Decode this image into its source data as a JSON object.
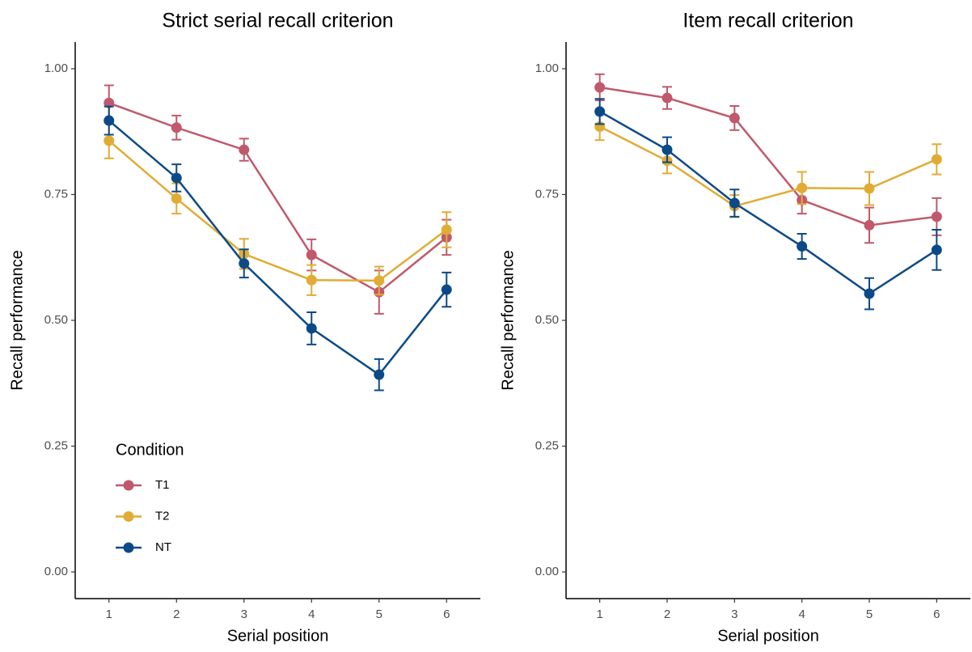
{
  "chart_data": [
    {
      "type": "line",
      "title": "Strict serial recall criterion",
      "x_label": "Serial position",
      "y_label": "Recall performance",
      "x": [
        1,
        2,
        3,
        4,
        5,
        6
      ],
      "xlim": [
        0.5,
        6.5
      ],
      "xticks": [
        1,
        2,
        3,
        4,
        5,
        6
      ],
      "ylim": [
        -0.053,
        1.053
      ],
      "yticks": [
        {
          "value": 0,
          "label": "0.00"
        },
        {
          "value": 0.25,
          "label": "0.25"
        },
        {
          "value": 0.5,
          "label": "0.50"
        },
        {
          "value": 0.75,
          "label": "0.75"
        },
        {
          "value": 1,
          "label": "1.00"
        }
      ],
      "legend": "bottom-left",
      "legend_title": "Condition",
      "series": [
        {
          "name": "T1",
          "color": "#c0596b",
          "values": [
            0.932,
            0.883,
            0.839,
            0.63,
            0.556,
            0.665
          ],
          "errors": [
            0.035,
            0.024,
            0.022,
            0.031,
            0.043,
            0.035
          ]
        },
        {
          "name": "T2",
          "color": "#e0ac35",
          "values": [
            0.857,
            0.742,
            0.632,
            0.58,
            0.579,
            0.68
          ],
          "errors": [
            0.035,
            0.03,
            0.03,
            0.03,
            0.028,
            0.035
          ]
        },
        {
          "name": "NT",
          "color": "#0c4a87",
          "values": [
            0.897,
            0.783,
            0.613,
            0.484,
            0.392,
            0.561
          ],
          "errors": [
            0.028,
            0.027,
            0.028,
            0.032,
            0.031,
            0.034
          ]
        }
      ]
    },
    {
      "type": "line",
      "title": "Item recall criterion",
      "x_label": "Serial position",
      "y_label": "Recall performance",
      "x": [
        1,
        2,
        3,
        4,
        5,
        6
      ],
      "xlim": [
        0.5,
        6.5
      ],
      "xticks": [
        1,
        2,
        3,
        4,
        5,
        6
      ],
      "ylim": [
        -0.053,
        1.053
      ],
      "yticks": [
        {
          "value": 0,
          "label": "0.00"
        },
        {
          "value": 0.25,
          "label": "0.25"
        },
        {
          "value": 0.5,
          "label": "0.50"
        },
        {
          "value": 0.75,
          "label": "0.75"
        },
        {
          "value": 1,
          "label": "1.00"
        }
      ],
      "legend": "none",
      "series": [
        {
          "name": "T1",
          "color": "#c0596b",
          "values": [
            0.963,
            0.942,
            0.902,
            0.739,
            0.689,
            0.706
          ],
          "errors": [
            0.026,
            0.022,
            0.024,
            0.027,
            0.035,
            0.037
          ]
        },
        {
          "name": "T2",
          "color": "#e0ac35",
          "values": [
            0.885,
            0.817,
            0.727,
            0.763,
            0.762,
            0.82
          ],
          "errors": [
            0.027,
            0.025,
            0.022,
            0.032,
            0.033,
            0.03
          ]
        },
        {
          "name": "NT",
          "color": "#0c4a87",
          "values": [
            0.915,
            0.839,
            0.733,
            0.647,
            0.553,
            0.64
          ],
          "errors": [
            0.025,
            0.025,
            0.027,
            0.025,
            0.031,
            0.04
          ]
        }
      ]
    }
  ]
}
